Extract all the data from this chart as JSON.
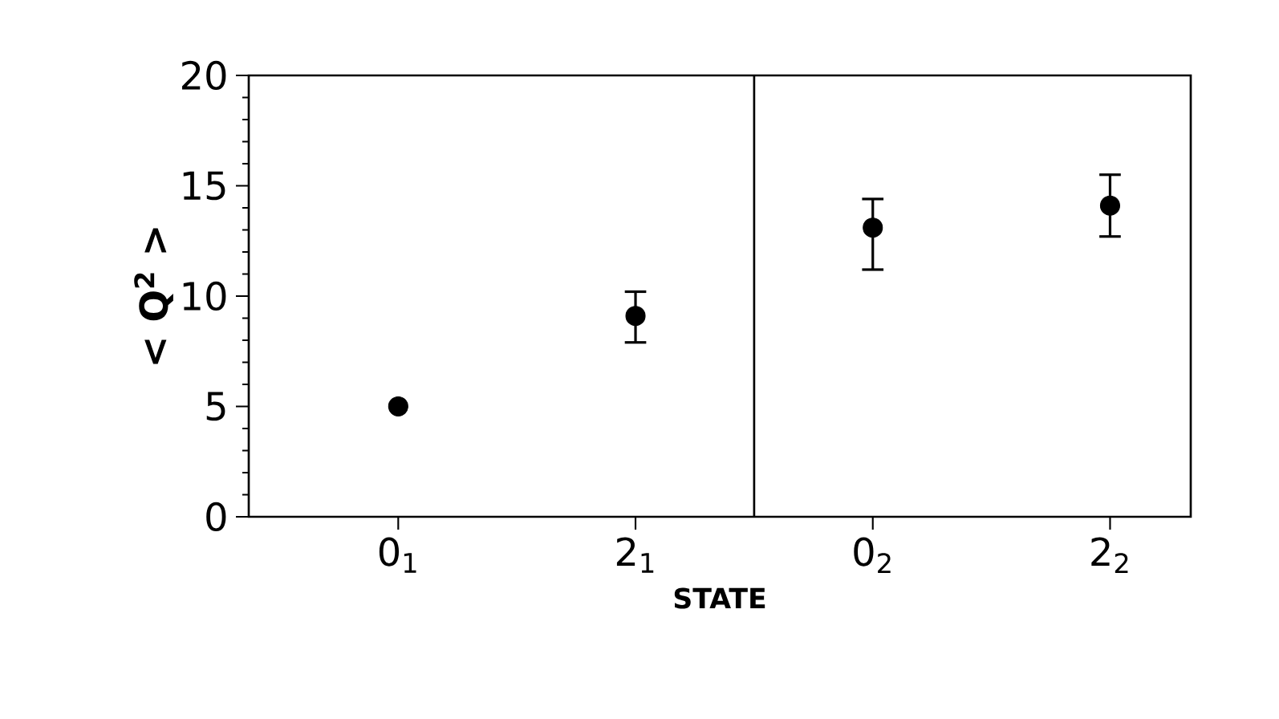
{
  "chart_data": {
    "type": "scatter",
    "xlabel": "STATE",
    "ylabel": "< Q$^{2}$ >",
    "categories": [
      "0$_{1}$",
      "2$_{1}$",
      "0$_{2}$",
      "2$_{2}$"
    ],
    "values": [
      5.0,
      9.1,
      13.1,
      14.1
    ],
    "errors": [
      null,
      [
        7.9,
        10.2
      ],
      [
        11.2,
        14.4
      ],
      [
        12.7,
        15.5
      ]
    ],
    "color": "#000000",
    "marker": "circle",
    "ylim": [
      0,
      20
    ],
    "yticks": [
      0,
      5,
      10,
      15,
      20
    ]
  }
}
